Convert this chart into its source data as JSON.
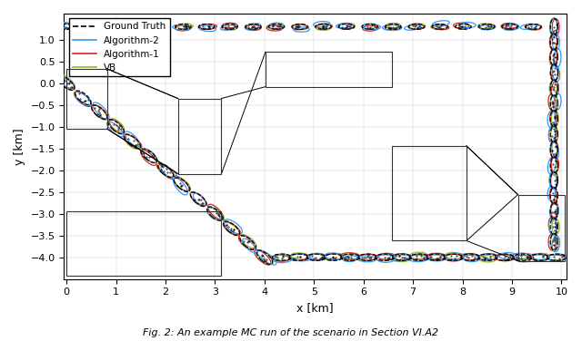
{
  "title": "Fig. 2: An example MC run of the scenario in Section VI.A2",
  "xlabel": "x [km]",
  "ylabel": "y [km]",
  "xlim": [
    -0.05,
    10.1
  ],
  "ylim": [
    -4.5,
    1.6
  ],
  "xticks": [
    0,
    1,
    2,
    3,
    4,
    5,
    6,
    7,
    8,
    9,
    10
  ],
  "yticks": [
    -4,
    -3.5,
    -3,
    -2.5,
    -2,
    -1.5,
    -1,
    -0.5,
    0,
    0.5,
    1
  ],
  "colors": {
    "gt": "black",
    "alg2": "#3399FF",
    "alg1": "#DD2222",
    "vb": "#88BB22"
  },
  "legend": {
    "gt": "Ground Truth",
    "alg2": "Algorithm-2",
    "alg1": "Algorithm-1",
    "vb": "VB"
  },
  "background_color": "#ffffff"
}
